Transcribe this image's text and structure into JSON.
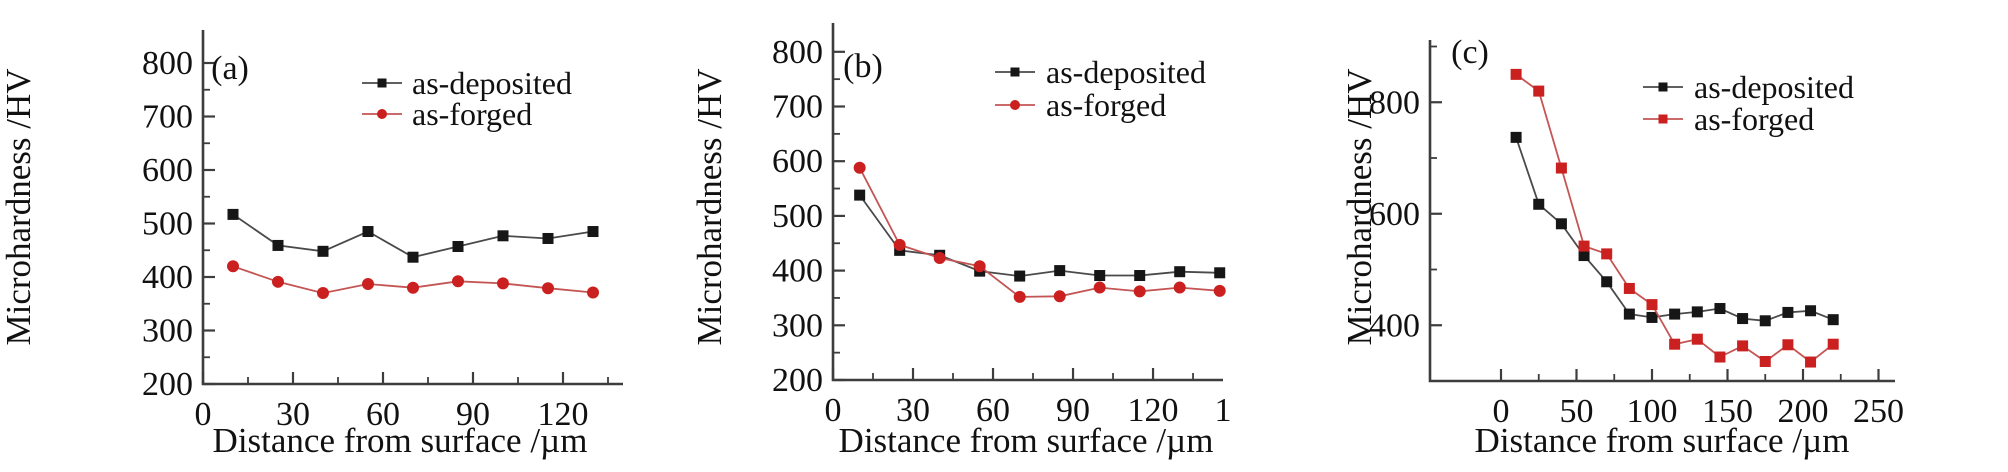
{
  "figure": {
    "ylabel": "Microhardness /HV",
    "xlabel": "Distance from surface /µm",
    "legend": [
      "as-deposited",
      "as-forged"
    ],
    "colors": {
      "deposited_marker": "#161616",
      "deposited_line": "#4a4a4a",
      "forged_marker": "#cb2020",
      "forged_line": "#c45555",
      "axis": "#3d3d3d"
    }
  },
  "chart_data": [
    {
      "type": "line",
      "panel_label": "(a)",
      "xlabel": "Distance from surface /µm",
      "ylabel": "Microhardness /HV",
      "x": [
        10,
        25,
        40,
        55,
        70,
        85,
        100,
        115,
        130
      ],
      "series": [
        {
          "name": "as-deposited",
          "marker": "square",
          "values": [
            517,
            459,
            448,
            485,
            437,
            457,
            477,
            472,
            485
          ]
        },
        {
          "name": "as-forged",
          "marker": "circle",
          "values": [
            420,
            391,
            370,
            387,
            380,
            392,
            388,
            379,
            371
          ]
        }
      ],
      "xlim": [
        0,
        140
      ],
      "ylim": [
        200,
        855
      ],
      "xticks": [
        0,
        30,
        60,
        90,
        120
      ],
      "xminor": [
        15,
        45,
        75,
        105,
        135
      ],
      "yticks": [
        200,
        300,
        400,
        500,
        600,
        700,
        800
      ],
      "yminor": [
        250,
        350,
        450,
        550,
        650,
        750
      ],
      "legend_position": "top-right",
      "grid": "off"
    },
    {
      "type": "line",
      "panel_label": "(b)",
      "xlabel": "Distance from surface /µm",
      "ylabel": "Microhardness /HV",
      "x": [
        10,
        25,
        40,
        55,
        70,
        85,
        100,
        115,
        130,
        145
      ],
      "series": [
        {
          "name": "as-deposited",
          "marker": "square",
          "values": [
            538,
            437,
            428,
            399,
            390,
            400,
            391,
            391,
            398,
            396
          ]
        },
        {
          "name": "as-forged",
          "marker": "circle",
          "values": [
            588,
            447,
            423,
            408,
            352,
            353,
            369,
            362,
            369,
            363
          ]
        }
      ],
      "xlim": [
        0,
        146
      ],
      "ylim": [
        200,
        855
      ],
      "xticks": [
        0,
        30,
        60,
        90,
        120
      ],
      "xminor": [
        15,
        45,
        75,
        105,
        135
      ],
      "yticks": [
        200,
        300,
        400,
        500,
        600,
        700,
        800
      ],
      "yminor": [
        250,
        350,
        450,
        550,
        650,
        750
      ],
      "axis_end_label": "1",
      "legend_position": "top-right",
      "grid": "off"
    },
    {
      "type": "line",
      "panel_label": "(c)",
      "xlabel": "Distance from surface /µm",
      "ylabel": "Microhardness /HV",
      "x": [
        10,
        25,
        40,
        55,
        70,
        85,
        100,
        115,
        130,
        145,
        160,
        175,
        190,
        205,
        220
      ],
      "series": [
        {
          "name": "as-deposited",
          "marker": "square",
          "values": [
            737,
            617,
            582,
            525,
            478,
            420,
            414,
            420,
            424,
            430,
            412,
            408,
            423,
            426,
            410
          ]
        },
        {
          "name": "as-forged",
          "marker": "square",
          "values": [
            850,
            820,
            682,
            542,
            528,
            466,
            437,
            366,
            375,
            343,
            363,
            335,
            365,
            334,
            366
          ]
        }
      ],
      "xlim": [
        -47,
        261
      ],
      "ylim": [
        298,
        912
      ],
      "xticks": [
        0,
        50,
        100,
        150,
        200,
        250
      ],
      "xminor": [
        25,
        75,
        125,
        175,
        225
      ],
      "yticks": [
        400,
        600,
        800
      ],
      "yminor": [
        500,
        700,
        900
      ],
      "legend_position": "top-right",
      "grid": "off"
    }
  ]
}
